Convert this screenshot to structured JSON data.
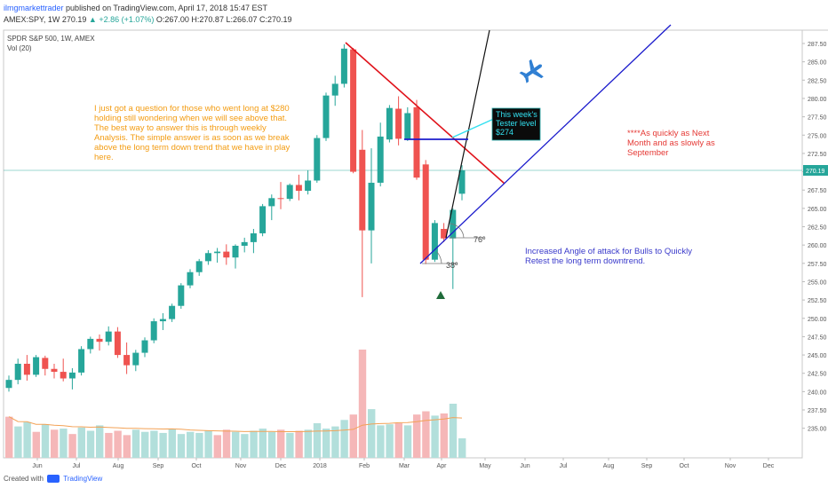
{
  "header": {
    "author": "ilmgmarkettrader",
    "published": "published on TradingView.com, April 17, 2018 15:47 EST",
    "symbol": "AMEX:SPY, 1W",
    "last": "270.19",
    "change": "▲ +2.86 (+1.07%)",
    "ohlc": "O:267.00 H:270.87 L:266.07 C:270.19"
  },
  "chart_title": "SPDR S&P 500, 1W, AMEX",
  "volume_label": "Vol (20)",
  "footer": {
    "created_with": "Created with",
    "brand": "TradingView"
  },
  "colors": {
    "up": "#26a69a",
    "down": "#ef5350",
    "up_vol": "#b2dfdb",
    "down_vol": "#f5b7b8",
    "ma": "#f3a256",
    "trend_red": "#e0131b",
    "trend_blue": "#1b1bcc",
    "note_orange": "#f39c12",
    "note_red": "#e53935",
    "note_blue": "#3a3acb",
    "callout_bg": "#0b0b0b",
    "callout_text": "#33e0f0"
  },
  "chart_data": {
    "type": "candlestick",
    "interval": "1W",
    "x_tick_labels": [
      "Jun",
      "Jul",
      "Aug",
      "Sep",
      "Oct",
      "Nov",
      "Dec",
      "2018",
      "Feb",
      "Mar",
      "Apr",
      "May",
      "Jun",
      "Jul",
      "Aug",
      "Sep",
      "Oct",
      "Nov",
      "Dec"
    ],
    "y_tick_labels": [
      "235.00",
      "237.50",
      "240.00",
      "242.50",
      "245.00",
      "247.50",
      "250.00",
      "252.50",
      "255.00",
      "257.50",
      "260.00",
      "262.50",
      "265.00",
      "267.50",
      "270.00",
      "272.50",
      "275.00",
      "277.50",
      "280.00",
      "282.50",
      "285.00",
      "287.50"
    ],
    "ylim": [
      232.5,
      289.5
    ],
    "last_price_label": "270.19",
    "candles": [
      {
        "o": 240.5,
        "h": 242.2,
        "l": 240.0,
        "c": 241.6
      },
      {
        "o": 241.6,
        "h": 244.5,
        "l": 241.0,
        "c": 243.8
      },
      {
        "o": 243.8,
        "h": 245.0,
        "l": 241.5,
        "c": 242.3
      },
      {
        "o": 242.3,
        "h": 245.0,
        "l": 242.0,
        "c": 244.7
      },
      {
        "o": 244.6,
        "h": 244.9,
        "l": 242.2,
        "c": 243.1
      },
      {
        "o": 243.1,
        "h": 243.8,
        "l": 241.8,
        "c": 242.7
      },
      {
        "o": 242.7,
        "h": 244.5,
        "l": 241.4,
        "c": 241.8
      },
      {
        "o": 241.8,
        "h": 243.2,
        "l": 240.3,
        "c": 242.6
      },
      {
        "o": 242.6,
        "h": 246.2,
        "l": 242.2,
        "c": 245.8
      },
      {
        "o": 245.8,
        "h": 247.5,
        "l": 245.2,
        "c": 247.2
      },
      {
        "o": 247.2,
        "h": 247.8,
        "l": 245.6,
        "c": 246.8
      },
      {
        "o": 246.8,
        "h": 248.9,
        "l": 246.3,
        "c": 248.2
      },
      {
        "o": 248.2,
        "h": 248.8,
        "l": 244.6,
        "c": 245.0
      },
      {
        "o": 245.0,
        "h": 246.7,
        "l": 242.4,
        "c": 243.6
      },
      {
        "o": 243.6,
        "h": 245.7,
        "l": 242.8,
        "c": 245.3
      },
      {
        "o": 245.3,
        "h": 247.4,
        "l": 244.7,
        "c": 247.0
      },
      {
        "o": 247.0,
        "h": 250.0,
        "l": 246.6,
        "c": 249.6
      },
      {
        "o": 249.6,
        "h": 250.7,
        "l": 248.4,
        "c": 249.9
      },
      {
        "o": 249.9,
        "h": 252.0,
        "l": 249.5,
        "c": 251.7
      },
      {
        "o": 251.7,
        "h": 254.8,
        "l": 251.3,
        "c": 254.5
      },
      {
        "o": 254.5,
        "h": 256.7,
        "l": 254.1,
        "c": 256.3
      },
      {
        "o": 256.3,
        "h": 258.1,
        "l": 255.8,
        "c": 257.8
      },
      {
        "o": 257.8,
        "h": 259.3,
        "l": 257.3,
        "c": 258.9
      },
      {
        "o": 258.9,
        "h": 259.6,
        "l": 257.6,
        "c": 259.1
      },
      {
        "o": 259.1,
        "h": 260.1,
        "l": 257.3,
        "c": 258.3
      },
      {
        "o": 258.3,
        "h": 260.1,
        "l": 256.8,
        "c": 259.9
      },
      {
        "o": 259.9,
        "h": 261.0,
        "l": 259.0,
        "c": 260.4
      },
      {
        "o": 260.4,
        "h": 262.2,
        "l": 258.9,
        "c": 261.6
      },
      {
        "o": 261.6,
        "h": 265.6,
        "l": 261.2,
        "c": 265.3
      },
      {
        "o": 265.3,
        "h": 266.9,
        "l": 263.4,
        "c": 266.4
      },
      {
        "o": 266.4,
        "h": 268.6,
        "l": 264.9,
        "c": 266.3
      },
      {
        "o": 266.3,
        "h": 268.4,
        "l": 266.0,
        "c": 268.2
      },
      {
        "o": 268.2,
        "h": 269.6,
        "l": 266.1,
        "c": 267.4
      },
      {
        "o": 267.4,
        "h": 270.2,
        "l": 266.9,
        "c": 268.8
      },
      {
        "o": 268.8,
        "h": 275.0,
        "l": 268.5,
        "c": 274.6
      },
      {
        "o": 274.6,
        "h": 280.8,
        "l": 274.2,
        "c": 280.4
      },
      {
        "o": 280.4,
        "h": 283.1,
        "l": 279.0,
        "c": 282.0
      },
      {
        "o": 282.0,
        "h": 287.4,
        "l": 281.5,
        "c": 286.8
      },
      {
        "o": 286.7,
        "h": 286.9,
        "l": 269.8,
        "c": 270.0
      },
      {
        "o": 273.0,
        "h": 275.7,
        "l": 252.9,
        "c": 262.0
      },
      {
        "o": 262.0,
        "h": 273.2,
        "l": 257.5,
        "c": 268.5
      },
      {
        "o": 268.5,
        "h": 276.7,
        "l": 268.0,
        "c": 274.8
      },
      {
        "o": 274.4,
        "h": 279.1,
        "l": 274.0,
        "c": 278.7
      },
      {
        "o": 278.6,
        "h": 280.3,
        "l": 273.6,
        "c": 274.5
      },
      {
        "o": 274.5,
        "h": 278.8,
        "l": 274.2,
        "c": 278.0
      },
      {
        "o": 278.8,
        "h": 279.8,
        "l": 268.9,
        "c": 269.2
      },
      {
        "o": 271.0,
        "h": 271.6,
        "l": 257.4,
        "c": 258.0
      },
      {
        "o": 258.0,
        "h": 263.4,
        "l": 257.7,
        "c": 263.0
      },
      {
        "o": 262.2,
        "h": 263.0,
        "l": 260.4,
        "c": 260.9
      },
      {
        "o": 260.9,
        "h": 265.0,
        "l": 254.0,
        "c": 264.8
      },
      {
        "o": 267.0,
        "h": 270.9,
        "l": 266.1,
        "c": 270.2
      }
    ],
    "volume": [
      {
        "v": 0.38,
        "up": false
      },
      {
        "v": 0.29,
        "up": true
      },
      {
        "v": 0.33,
        "up": true
      },
      {
        "v": 0.24,
        "up": false
      },
      {
        "v": 0.31,
        "up": true
      },
      {
        "v": 0.26,
        "up": false
      },
      {
        "v": 0.27,
        "up": true
      },
      {
        "v": 0.22,
        "up": false
      },
      {
        "v": 0.28,
        "up": true
      },
      {
        "v": 0.25,
        "up": true
      },
      {
        "v": 0.3,
        "up": true
      },
      {
        "v": 0.23,
        "up": false
      },
      {
        "v": 0.25,
        "up": false
      },
      {
        "v": 0.21,
        "up": false
      },
      {
        "v": 0.26,
        "up": true
      },
      {
        "v": 0.24,
        "up": true
      },
      {
        "v": 0.25,
        "up": true
      },
      {
        "v": 0.23,
        "up": true
      },
      {
        "v": 0.27,
        "up": true
      },
      {
        "v": 0.22,
        "up": true
      },
      {
        "v": 0.24,
        "up": true
      },
      {
        "v": 0.23,
        "up": true
      },
      {
        "v": 0.25,
        "up": true
      },
      {
        "v": 0.21,
        "up": false
      },
      {
        "v": 0.26,
        "up": false
      },
      {
        "v": 0.24,
        "up": true
      },
      {
        "v": 0.22,
        "up": true
      },
      {
        "v": 0.25,
        "up": true
      },
      {
        "v": 0.27,
        "up": true
      },
      {
        "v": 0.24,
        "up": true
      },
      {
        "v": 0.26,
        "up": false
      },
      {
        "v": 0.23,
        "up": true
      },
      {
        "v": 0.25,
        "up": false
      },
      {
        "v": 0.26,
        "up": true
      },
      {
        "v": 0.32,
        "up": true
      },
      {
        "v": 0.27,
        "up": true
      },
      {
        "v": 0.29,
        "up": true
      },
      {
        "v": 0.35,
        "up": true
      },
      {
        "v": 0.4,
        "up": false
      },
      {
        "v": 1.0,
        "up": false
      },
      {
        "v": 0.45,
        "up": true
      },
      {
        "v": 0.3,
        "up": true
      },
      {
        "v": 0.31,
        "up": true
      },
      {
        "v": 0.32,
        "up": false
      },
      {
        "v": 0.3,
        "up": true
      },
      {
        "v": 0.4,
        "up": false
      },
      {
        "v": 0.43,
        "up": false
      },
      {
        "v": 0.39,
        "up": true
      },
      {
        "v": 0.41,
        "up": false
      },
      {
        "v": 0.5,
        "up": true
      },
      {
        "v": 0.18,
        "up": true
      }
    ],
    "annotations": {
      "left_note": [
        "I just got a question for those who went long at $280",
        "holding still wondering when we will see above that.",
        "The best way to answer this is through weekly",
        "Analysis. The simple answer is as soon as we break",
        "above the long term down trend that we have in play",
        "here."
      ],
      "callout": [
        "This week's",
        "Tester level",
        "$274"
      ],
      "right_note": [
        "****As quickly as Next",
        "Month and as slowly as",
        "September"
      ],
      "blue_note": [
        "Increased Angle of attack for Bulls to Quickly",
        "Retest the long term downtrend."
      ],
      "angle_1": "76º",
      "angle_2": "38º"
    }
  }
}
